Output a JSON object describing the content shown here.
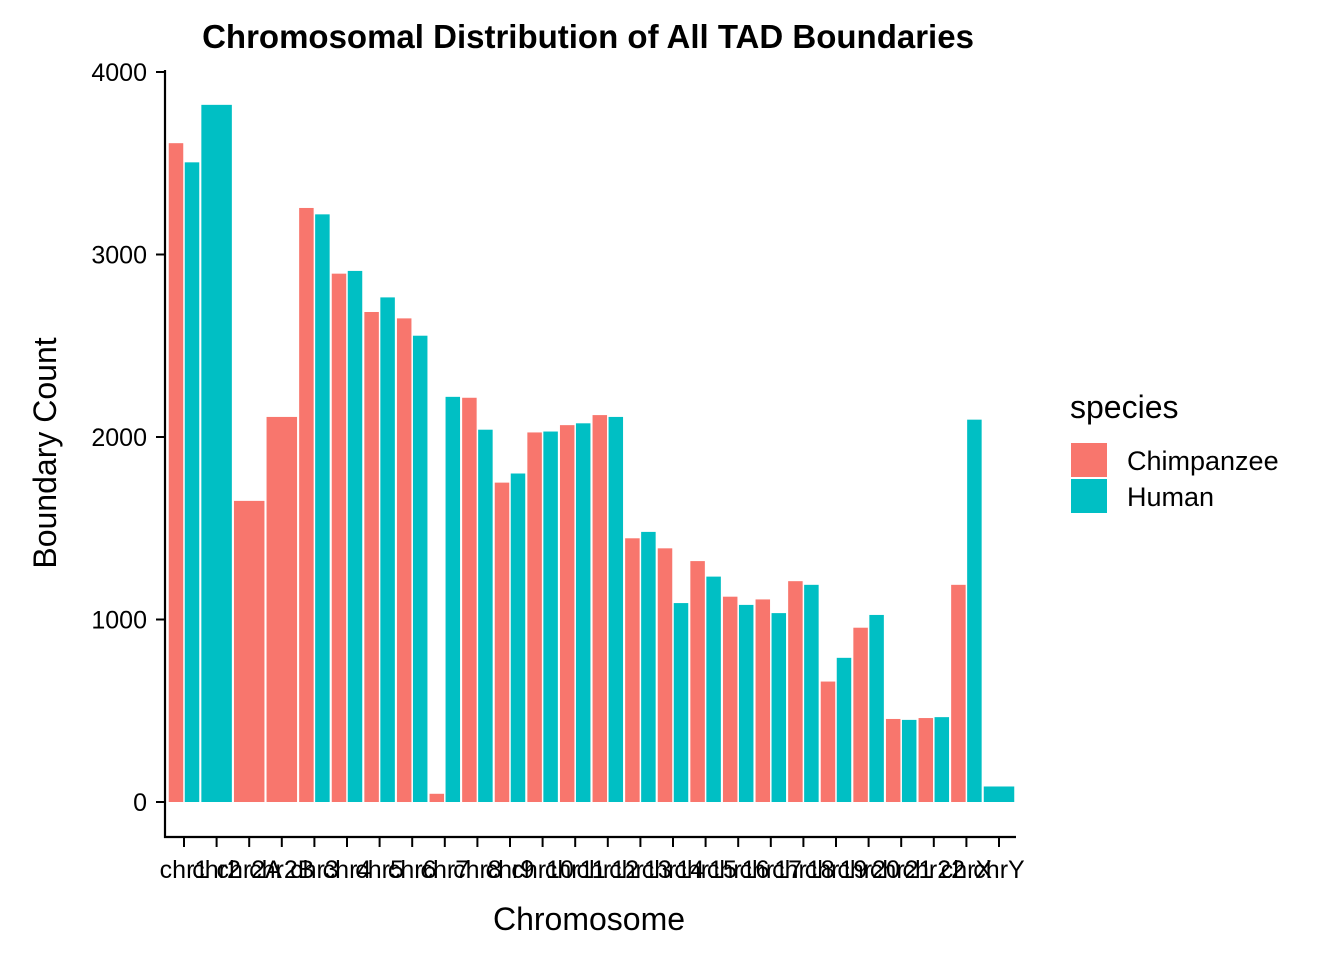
{
  "chart_data": {
    "type": "bar",
    "title": "Chromosomal Distribution of All TAD Boundaries",
    "xlabel": "Chromosome",
    "ylabel": "Boundary Count",
    "ylim": [
      0,
      4000
    ],
    "yticks": [
      0,
      1000,
      2000,
      3000,
      4000
    ],
    "grid": false,
    "legend": {
      "title": "species",
      "position": "right"
    },
    "categories": [
      "chr1",
      "chr2",
      "chr2A",
      "chr2B",
      "chr3",
      "chr4",
      "chr5",
      "chr6",
      "chr7",
      "chr8",
      "chr9",
      "chr10",
      "chr11",
      "chr12",
      "chr13",
      "chr14",
      "chr15",
      "chr16",
      "chr17",
      "chr18",
      "chr19",
      "chr20",
      "chr21",
      "chr22",
      "chrX",
      "chrY"
    ],
    "series": [
      {
        "name": "Chimpanzee",
        "color": "#F8766D",
        "values": [
          3610,
          null,
          1650,
          2110,
          3255,
          2895,
          2685,
          2650,
          45,
          2215,
          1750,
          2025,
          2065,
          2120,
          1445,
          1390,
          1320,
          1125,
          1110,
          1210,
          660,
          955,
          455,
          460,
          1190,
          null
        ]
      },
      {
        "name": "Human",
        "color": "#00BFC4",
        "values": [
          3505,
          3820,
          null,
          null,
          3220,
          2910,
          2765,
          2555,
          2220,
          2040,
          1800,
          2030,
          2075,
          2110,
          1480,
          1090,
          1235,
          1080,
          1035,
          1190,
          790,
          1025,
          450,
          465,
          2095,
          85
        ]
      }
    ]
  }
}
